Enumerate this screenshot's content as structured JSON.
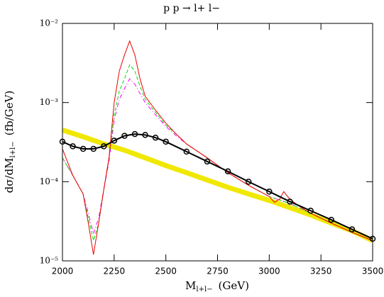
{
  "chart_data": {
    "type": "line",
    "title": "p p → l+ l−",
    "xlabel": {
      "main": "M",
      "sub": "l+l−",
      "unit": "(GeV)"
    },
    "ylabel": {
      "main": "dσ/dM",
      "sub": "l+l−",
      "unit": "(fb/GeV)"
    },
    "xlim": [
      2000,
      3500
    ],
    "xticks": [
      2000,
      2250,
      2500,
      2750,
      3000,
      3250,
      3500
    ],
    "ylim": [
      1e-05,
      0.01
    ],
    "log_y": true,
    "yticks": [
      {
        "value": 0.01,
        "label": "10⁻²"
      },
      {
        "value": 0.001,
        "label": "10⁻³"
      },
      {
        "value": 0.0001,
        "label": "10⁻⁴"
      },
      {
        "value": 1e-05,
        "label": "10⁻⁵"
      }
    ],
    "series": [
      {
        "color": "#f0e800",
        "width": 7,
        "x": [
          2000,
          2100,
          2200,
          2300,
          2400,
          2500,
          2600,
          2700,
          2800,
          2900,
          3000,
          3100,
          3200,
          3300,
          3400,
          3500
        ],
        "values": [
          0.00045,
          0.00037,
          0.0003,
          0.00025,
          0.0002,
          0.00016,
          0.00013,
          0.000105,
          8.5e-05,
          7e-05,
          5.8e-05,
          4.7e-05,
          3.8e-05,
          3e-05,
          2.4e-05,
          1.8e-05
        ]
      },
      {
        "color": "#ff00ff",
        "width": 1,
        "dash": "6 3 1 3",
        "x": [
          2000,
          2050,
          2100,
          2125,
          2150,
          2175,
          2200,
          2225,
          2250,
          2275,
          2300,
          2325,
          2350,
          2375,
          2400,
          2450,
          2500,
          2550,
          2600,
          2700,
          2800,
          2900,
          3000,
          3100,
          3200,
          3300,
          3400,
          3500
        ],
        "values": [
          0.0002,
          0.00012,
          7e-05,
          4e-05,
          2.2e-05,
          3.5e-05,
          8e-05,
          0.00018,
          0.0006,
          0.0011,
          0.0015,
          0.002,
          0.0017,
          0.0013,
          0.001,
          0.0007,
          0.0005,
          0.00038,
          0.0003,
          0.0002,
          0.00013,
          9e-05,
          6.5e-05,
          5.3e-05,
          4e-05,
          3e-05,
          2.3e-05,
          1.8e-05
        ]
      },
      {
        "color": "#00dd00",
        "width": 1,
        "dash": "5 3",
        "x": [
          2000,
          2050,
          2100,
          2125,
          2150,
          2175,
          2200,
          2225,
          2250,
          2275,
          2300,
          2325,
          2350,
          2375,
          2400,
          2450,
          2500,
          2550,
          2600,
          2700,
          2800,
          2900,
          3000,
          3100,
          3200,
          3300,
          3400,
          3500
        ],
        "values": [
          0.0002,
          0.00012,
          7e-05,
          3.5e-05,
          1.8e-05,
          3e-05,
          8e-05,
          0.0002,
          0.0007,
          0.0014,
          0.002,
          0.003,
          0.0025,
          0.0016,
          0.0011,
          0.00075,
          0.00052,
          0.0004,
          0.0003,
          0.0002,
          0.00013,
          9e-05,
          6.5e-05,
          5.3e-05,
          4e-05,
          3e-05,
          2.3e-05,
          1.8e-05
        ]
      },
      {
        "color": "#ee0000",
        "width": 1,
        "x": [
          2000,
          2050,
          2100,
          2125,
          2150,
          2175,
          2200,
          2225,
          2250,
          2275,
          2300,
          2325,
          2350,
          2375,
          2400,
          2450,
          2500,
          2550,
          2600,
          2700,
          2800,
          2900,
          3000,
          3025,
          3050,
          3070,
          3100,
          3150,
          3200,
          3300,
          3400,
          3500
        ],
        "values": [
          0.00026,
          0.00012,
          7e-05,
          3e-05,
          1.2e-05,
          3e-05,
          8e-05,
          0.0002,
          0.001,
          0.0025,
          0.004,
          0.006,
          0.004,
          0.002,
          0.0012,
          0.0008,
          0.00055,
          0.0004,
          0.0003,
          0.0002,
          0.00013,
          9e-05,
          6.5e-05,
          5.5e-05,
          6e-05,
          7.5e-05,
          6e-05,
          4.8e-05,
          4e-05,
          3e-05,
          2.3e-05,
          1.8e-05
        ]
      },
      {
        "color": "#000000",
        "width": 2,
        "markers": true,
        "x": [
          2000,
          2050,
          2100,
          2150,
          2200,
          2250,
          2300,
          2350,
          2400,
          2450,
          2500,
          2600,
          2700,
          2800,
          2900,
          3000,
          3100,
          3200,
          3300,
          3400,
          3500
        ],
        "values": [
          0.00032,
          0.00028,
          0.00026,
          0.00026,
          0.00028,
          0.00033,
          0.00038,
          0.0004,
          0.00039,
          0.00036,
          0.00032,
          0.00024,
          0.00018,
          0.000135,
          0.0001,
          7.5e-05,
          5.6e-05,
          4.3e-05,
          3.3e-05,
          2.5e-05,
          1.9e-05
        ]
      }
    ]
  }
}
